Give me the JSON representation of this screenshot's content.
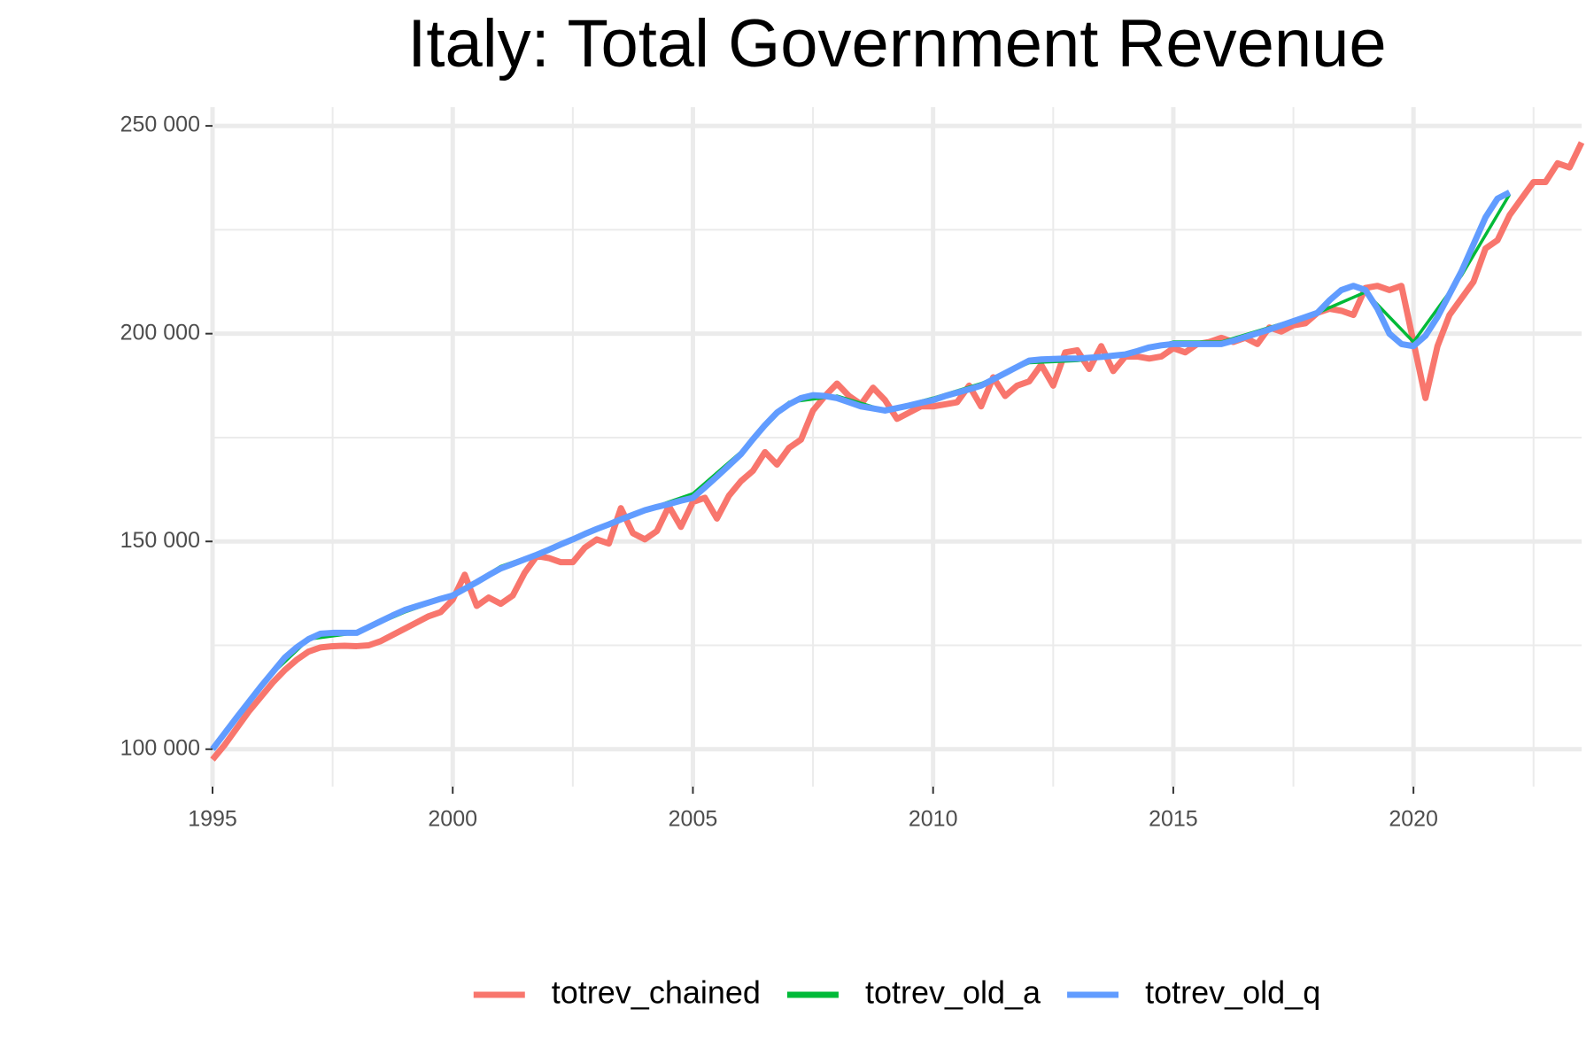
{
  "chart_data": {
    "type": "line",
    "title": "Italy: Total Government Revenue",
    "xlim": [
      1995,
      2023.5
    ],
    "ylim": [
      91000,
      254500
    ],
    "xticks": [
      1995,
      2000,
      2005,
      2010,
      2015,
      2020
    ],
    "yticks": [
      {
        "value": 100000,
        "label": "100 000"
      },
      {
        "value": 150000,
        "label": "150 000"
      },
      {
        "value": 200000,
        "label": "200 000"
      },
      {
        "value": 250000,
        "label": "250 000"
      }
    ],
    "x_minor_breaks": [
      1997.5,
      2002.5,
      2007.5,
      2012.5,
      2017.5,
      2022.5
    ],
    "y_minor_breaks": [
      125000,
      175000,
      225000
    ],
    "grid": true,
    "legend_position": "bottom",
    "series": [
      {
        "name": "totrev_chained",
        "color": "#F8766D",
        "x": [
          1995,
          1995.25,
          1995.5,
          1995.75,
          1996,
          1996.25,
          1996.5,
          1996.75,
          1997,
          1997.25,
          1997.5,
          1997.75,
          1998,
          1998.25,
          1998.5,
          1998.75,
          1999,
          1999.25,
          1999.5,
          1999.75,
          2000,
          2000.25,
          2000.5,
          2000.75,
          2001,
          2001.25,
          2001.5,
          2001.75,
          2002,
          2002.25,
          2002.5,
          2002.75,
          2003,
          2003.25,
          2003.5,
          2003.75,
          2004,
          2004.25,
          2004.5,
          2004.75,
          2005,
          2005.25,
          2005.5,
          2005.75,
          2006,
          2006.25,
          2006.5,
          2006.75,
          2007,
          2007.25,
          2007.5,
          2007.75,
          2008,
          2008.25,
          2008.5,
          2008.75,
          2009,
          2009.25,
          2009.5,
          2009.75,
          2010,
          2010.25,
          2010.5,
          2010.75,
          2011,
          2011.25,
          2011.5,
          2011.75,
          2012,
          2012.25,
          2012.5,
          2012.75,
          2013,
          2013.25,
          2013.5,
          2013.75,
          2014,
          2014.25,
          2014.5,
          2014.75,
          2015,
          2015.25,
          2015.5,
          2015.75,
          2016,
          2016.25,
          2016.5,
          2016.75,
          2017,
          2017.25,
          2017.5,
          2017.75,
          2018,
          2018.25,
          2018.5,
          2018.75,
          2019,
          2019.25,
          2019.5,
          2019.75,
          2020,
          2020.25,
          2020.5,
          2020.75,
          2021,
          2021.25,
          2021.5,
          2021.75,
          2022,
          2022.25,
          2022.5,
          2022.75,
          2023,
          2023.25,
          2023.5
        ],
        "values": [
          97500,
          101000,
          105000,
          109000,
          112500,
          116000,
          119000,
          121500,
          123500,
          124500,
          124800,
          124900,
          124800,
          125000,
          126000,
          127500,
          129000,
          130500,
          132000,
          133000,
          136000,
          142000,
          134500,
          136500,
          135000,
          137000,
          142500,
          146500,
          146000,
          145000,
          145000,
          148500,
          150500,
          149500,
          158000,
          152000,
          150500,
          152500,
          158500,
          153500,
          159500,
          160500,
          155500,
          161000,
          164500,
          167000,
          171500,
          168500,
          172500,
          174500,
          181500,
          185000,
          188000,
          185000,
          183000,
          187000,
          184000,
          179500,
          181000,
          182500,
          182500,
          183000,
          183500,
          187500,
          182500,
          189500,
          185000,
          187500,
          188500,
          192500,
          187500,
          195500,
          196000,
          191500,
          197000,
          191000,
          194500,
          194500,
          194000,
          194500,
          196500,
          195500,
          197500,
          198000,
          199000,
          198000,
          199000,
          197500,
          201500,
          200500,
          202000,
          202500,
          205000,
          206000,
          205500,
          204500,
          211000,
          211500,
          210500,
          211500,
          198000,
          184500,
          197000,
          204500,
          208500,
          212500,
          220500,
          222500,
          228500,
          232500,
          236500,
          236500,
          241000,
          240000,
          246000
        ]
      },
      {
        "name": "totrev_old_a",
        "color": "#00BA38",
        "x": [
          1995,
          1996,
          1997,
          1998,
          1999,
          2000,
          2001,
          2002,
          2003,
          2004,
          2005,
          2006,
          2007,
          2008,
          2009,
          2010,
          2011,
          2012,
          2013,
          2014,
          2015,
          2016,
          2017,
          2018,
          2019,
          2020,
          2021,
          2022
        ],
        "values": [
          100000,
          115500,
          126500,
          128000,
          133000,
          137000,
          144000,
          148000,
          153000,
          157500,
          161500,
          171500,
          183500,
          185000,
          181500,
          184500,
          188000,
          193000,
          193500,
          195000,
          198000,
          198000,
          201500,
          205000,
          210000,
          198000,
          214000,
          233500
        ]
      },
      {
        "name": "totrev_old_q",
        "color": "#619CFF",
        "x": [
          1995,
          1995.25,
          1995.5,
          1995.75,
          1996,
          1996.25,
          1996.5,
          1996.75,
          1997,
          1997.25,
          1997.5,
          1997.75,
          1998,
          1998.25,
          1998.5,
          1998.75,
          1999,
          1999.25,
          1999.5,
          1999.75,
          2000,
          2000.25,
          2000.5,
          2000.75,
          2001,
          2001.25,
          2001.5,
          2001.75,
          2002,
          2002.25,
          2002.5,
          2002.75,
          2003,
          2003.25,
          2003.5,
          2003.75,
          2004,
          2004.25,
          2004.5,
          2004.75,
          2005,
          2005.25,
          2005.5,
          2005.75,
          2006,
          2006.25,
          2006.5,
          2006.75,
          2007,
          2007.25,
          2007.5,
          2007.75,
          2008,
          2008.25,
          2008.5,
          2008.75,
          2009,
          2009.25,
          2009.5,
          2009.75,
          2010,
          2010.25,
          2010.5,
          2010.75,
          2011,
          2011.25,
          2011.5,
          2011.75,
          2012,
          2012.25,
          2012.5,
          2012.75,
          2013,
          2013.25,
          2013.5,
          2013.75,
          2014,
          2014.25,
          2014.5,
          2014.75,
          2015,
          2015.25,
          2015.5,
          2015.75,
          2016,
          2016.25,
          2016.5,
          2016.75,
          2017,
          2017.25,
          2017.5,
          2017.75,
          2018,
          2018.25,
          2018.5,
          2018.75,
          2019,
          2019.25,
          2019.5,
          2019.75,
          2020,
          2020.25,
          2020.5,
          2020.75,
          2021,
          2021.25,
          2021.5,
          2021.75,
          2022
        ],
        "values": [
          100000,
          103800,
          107600,
          111300,
          115000,
          118500,
          122000,
          124500,
          126500,
          127800,
          128000,
          128000,
          128000,
          129400,
          130800,
          132200,
          133500,
          134400,
          135300,
          136200,
          137000,
          138600,
          140200,
          141900,
          143500,
          144600,
          145700,
          146800,
          148000,
          149300,
          150500,
          151800,
          153000,
          154100,
          155300,
          156400,
          157500,
          158300,
          159000,
          159800,
          160500,
          163000,
          165600,
          168300,
          171000,
          174600,
          178000,
          181000,
          183000,
          184500,
          185200,
          185000,
          184500,
          183500,
          182500,
          182000,
          181500,
          182100,
          182700,
          183400,
          184000,
          185000,
          185800,
          186600,
          187500,
          189000,
          190500,
          192000,
          193500,
          193800,
          193900,
          194000,
          194000,
          194200,
          194400,
          194700,
          195000,
          195800,
          196700,
          197200,
          197500,
          197500,
          197500,
          197500,
          197500,
          198300,
          199200,
          200100,
          201000,
          202000,
          203000,
          204000,
          205000,
          208000,
          210500,
          211500,
          210500,
          206000,
          200000,
          197500,
          197000,
          199500,
          204000,
          209500,
          215000,
          221500,
          228000,
          232500,
          234000
        ]
      }
    ]
  }
}
